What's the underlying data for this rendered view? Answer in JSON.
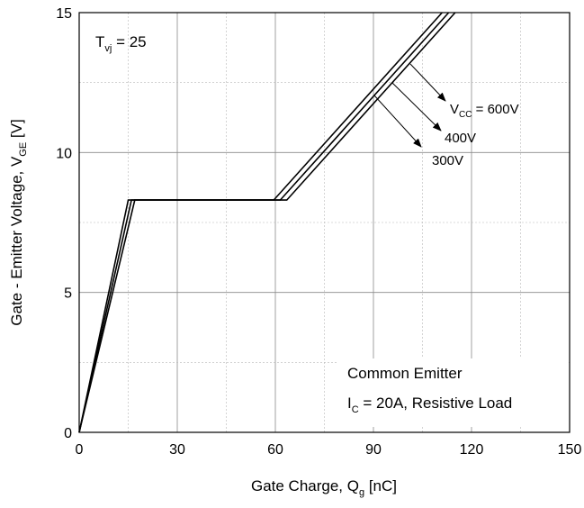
{
  "chart_data": {
    "type": "line",
    "xlabel": {
      "main": "Gate Charge, Q",
      "sub": "g",
      "tail": " [nC]"
    },
    "ylabel": {
      "main": "Gate - Emitter Voltage, V",
      "sub": "GE",
      "tail": " [V]"
    },
    "xlim": [
      0,
      150
    ],
    "ylim": [
      0,
      15
    ],
    "xticks": [
      0,
      30,
      60,
      90,
      120,
      150
    ],
    "yticks": [
      0,
      5,
      10,
      15
    ],
    "xtick_labels": [
      "0",
      "30",
      "60",
      "90",
      "120",
      "150"
    ],
    "ytick_labels": [
      "0",
      "5",
      "10",
      "15"
    ],
    "grid": true,
    "series": [
      {
        "name": "600V",
        "x": [
          0,
          17,
          63.5,
          115
        ],
        "y": [
          0,
          8.3,
          8.3,
          15
        ]
      },
      {
        "name": "400V",
        "x": [
          0,
          16,
          61.5,
          113
        ],
        "y": [
          0,
          8.3,
          8.3,
          15
        ]
      },
      {
        "name": "300V",
        "x": [
          0,
          15,
          59.5,
          111
        ],
        "y": [
          0,
          8.3,
          8.3,
          15
        ]
      }
    ],
    "annotations": {
      "temperature": {
        "main": "T",
        "sub": "vj",
        "tail": " = 25"
      },
      "vcc_label": {
        "main": "V",
        "sub": "CC",
        "tail": " = 600V"
      },
      "label_400": "400V",
      "label_300": "300V",
      "condition_line1": "Common Emitter",
      "condition_line2": {
        "main": "I",
        "sub": "C",
        "tail": " = 20A, Resistive Load"
      }
    }
  }
}
